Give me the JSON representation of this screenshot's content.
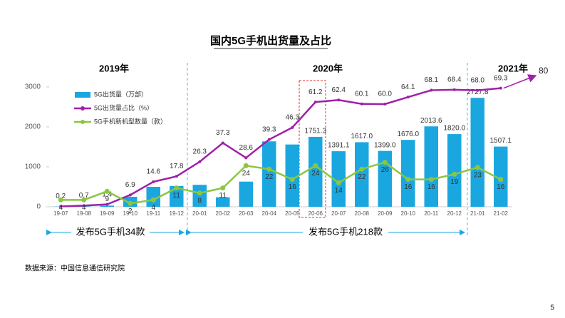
{
  "chart_data": {
    "type": "bar-line",
    "title": "国内5G手机出货量及占比",
    "categories": [
      "19-07",
      "19-08",
      "19-09",
      "19-10",
      "19-11",
      "19-12",
      "20-01",
      "20-02",
      "20-03",
      "20-04",
      "20-05",
      "20-06",
      "20-07",
      "20-08",
      "20-09",
      "20-10",
      "20-11",
      "20-12",
      "21-01",
      "21-02"
    ],
    "series": [
      {
        "name": "5G出货量（万部）",
        "kind": "bar",
        "color": "#1aa7e0",
        "values": [
          5,
          10,
          30,
          250,
          500,
          520,
          550,
          238,
          630,
          1638,
          1560,
          1751.3,
          1391.1,
          1617.0,
          1399.0,
          1676.0,
          2013.6,
          1820.0,
          2727.8,
          1507.1
        ],
        "value_labels": [
          null,
          null,
          null,
          null,
          null,
          null,
          null,
          null,
          null,
          null,
          null,
          "1751.3",
          "1391.1",
          "1617.0",
          "1399.0",
          "1676.0",
          "2013.6",
          "1820.0",
          "2727.8",
          "1507.1"
        ]
      },
      {
        "name": "5G出货量占比（%）",
        "kind": "line",
        "axis": "y2",
        "color": "#a020a8",
        "values": [
          0.2,
          0.7,
          1.4,
          6.9,
          14.6,
          17.8,
          26.3,
          37.3,
          28.6,
          39.3,
          46.3,
          61.2,
          62.4,
          60.1,
          60.0,
          64.1,
          68.1,
          68.4,
          68.0,
          69.3
        ],
        "value_labels": [
          "0.2",
          "0.7",
          "1.4",
          "6.9",
          "14.6",
          "17.8",
          "26.3",
          "37.3",
          "28.6",
          "39.3",
          "46.3",
          "61.2",
          "62.4",
          "60.1",
          "60.0",
          "64.1",
          "68.1",
          "68.4",
          "68.0",
          "69.3"
        ]
      },
      {
        "name": "5G手机新机型数量（款）",
        "kind": "line",
        "axis": "y2",
        "color": "#8cc63f",
        "values": [
          4,
          4,
          9,
          2,
          4,
          11,
          8,
          11,
          24,
          22,
          16,
          24,
          14,
          22,
          26,
          16,
          16,
          19,
          23,
          16
        ]
      }
    ],
    "ylim": [
      0,
      3000
    ],
    "yticks": [
      0,
      1000,
      2000,
      3000
    ],
    "y2lim": [
      0,
      70
    ],
    "years": [
      "2019年",
      "2020年",
      "2021年"
    ],
    "releases": [
      "发布5G手机34款",
      "发布5G手机218款"
    ],
    "forecast": 80,
    "source": "数据来源：中国信息通信研究院",
    "page": "5"
  }
}
